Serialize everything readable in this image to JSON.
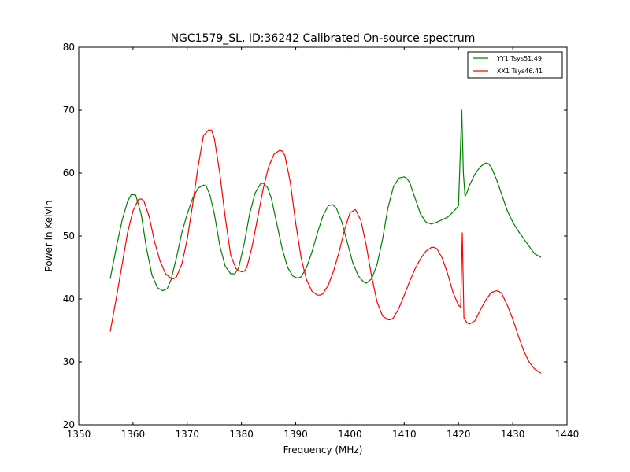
{
  "chart_data": {
    "type": "line",
    "title": "NGC1579_SL, ID:36242 Calibrated On-source spectrum",
    "xlabel": "Frequency (MHz)",
    "ylabel": "Power in Kelvin",
    "xlim": [
      1350,
      1440
    ],
    "ylim": [
      20,
      80
    ],
    "xticks": [
      "1350",
      "1360",
      "1370",
      "1380",
      "1390",
      "1400",
      "1410",
      "1420",
      "1430",
      "1440"
    ],
    "yticks": [
      "20",
      "30",
      "40",
      "50",
      "60",
      "70",
      "80"
    ],
    "grid": false,
    "legend_position": "top-right",
    "series": [
      {
        "name": "YY1 Tsys51.49",
        "color": "#008000",
        "x": [
          1355.8,
          1357.0,
          1358.0,
          1359.0,
          1359.7,
          1360.5,
          1361.5,
          1362.5,
          1363.5,
          1364.5,
          1365.5,
          1366.3,
          1367.0,
          1368.0,
          1369.0,
          1370.0,
          1371.0,
          1372.0,
          1373.0,
          1373.5,
          1374.2,
          1375.0,
          1376.0,
          1377.0,
          1378.0,
          1378.8,
          1379.5,
          1380.5,
          1381.5,
          1382.5,
          1383.5,
          1384.0,
          1384.8,
          1385.5,
          1386.5,
          1387.5,
          1388.5,
          1389.5,
          1390.3,
          1391.0,
          1392.0,
          1393.0,
          1394.0,
          1395.0,
          1396.0,
          1396.8,
          1397.5,
          1398.5,
          1399.5,
          1400.5,
          1401.5,
          1402.5,
          1403.0,
          1404.0,
          1405.0,
          1406.0,
          1407.0,
          1408.0,
          1409.0,
          1410.0,
          1410.5,
          1411.0,
          1412.0,
          1413.0,
          1414.0,
          1415.0,
          1416.0,
          1417.0,
          1418.0,
          1419.0,
          1420.0,
          1420.6,
          1420.9,
          1421.2,
          1421.5,
          1422.0,
          1423.0,
          1424.0,
          1425.0,
          1425.5,
          1426.0,
          1427.0,
          1428.0,
          1429.0,
          1430.0,
          1431.0,
          1432.0,
          1433.0,
          1434.0,
          1435.2
        ],
        "y": [
          43.2,
          48.5,
          52.5,
          55.5,
          56.6,
          56.5,
          53.5,
          48.0,
          43.8,
          41.8,
          41.3,
          41.6,
          43.0,
          46.5,
          50.5,
          53.5,
          56.0,
          57.6,
          58.1,
          57.9,
          56.5,
          53.5,
          48.5,
          45.2,
          44.0,
          44.0,
          45.0,
          48.8,
          53.5,
          56.8,
          58.3,
          58.4,
          57.7,
          56.0,
          52.0,
          48.0,
          45.0,
          43.6,
          43.3,
          43.5,
          45.0,
          47.5,
          50.5,
          53.2,
          54.8,
          55.0,
          54.4,
          52.2,
          49.0,
          45.8,
          43.7,
          42.7,
          42.5,
          43.2,
          45.5,
          49.5,
          54.5,
          57.8,
          59.2,
          59.4,
          59.1,
          58.5,
          56.0,
          53.5,
          52.2,
          51.9,
          52.2,
          52.6,
          53.0,
          53.8,
          54.8,
          70.0,
          60.0,
          56.3,
          56.8,
          58.0,
          59.8,
          61.0,
          61.6,
          61.5,
          61.0,
          59.0,
          56.5,
          54.0,
          52.2,
          50.8,
          49.6,
          48.4,
          47.2,
          46.6
        ]
      },
      {
        "name": "XX1 Tsys46.41",
        "color": "#ff0000",
        "x": [
          1355.8,
          1357.0,
          1358.0,
          1359.0,
          1360.0,
          1361.0,
          1361.5,
          1362.0,
          1363.0,
          1364.0,
          1365.0,
          1366.0,
          1367.0,
          1367.5,
          1368.0,
          1369.0,
          1370.0,
          1371.0,
          1372.0,
          1373.0,
          1374.0,
          1374.5,
          1375.0,
          1376.0,
          1377.0,
          1378.0,
          1379.0,
          1380.0,
          1380.5,
          1381.0,
          1382.0,
          1383.0,
          1384.0,
          1385.0,
          1386.0,
          1387.0,
          1387.5,
          1388.0,
          1389.0,
          1390.0,
          1391.0,
          1392.0,
          1393.0,
          1394.0,
          1394.5,
          1395.0,
          1396.0,
          1397.0,
          1398.0,
          1399.0,
          1400.0,
          1401.0,
          1402.0,
          1403.0,
          1404.0,
          1405.0,
          1406.0,
          1407.0,
          1407.5,
          1408.0,
          1409.0,
          1410.0,
          1411.0,
          1412.0,
          1413.0,
          1414.0,
          1415.0,
          1415.5,
          1416.0,
          1417.0,
          1418.0,
          1419.0,
          1420.0,
          1420.4,
          1420.7,
          1421.0,
          1421.5,
          1422.0,
          1423.0,
          1424.0,
          1425.0,
          1426.0,
          1427.0,
          1427.5,
          1428.0,
          1429.0,
          1430.0,
          1431.0,
          1432.0,
          1433.0,
          1434.0,
          1435.2
        ],
        "y": [
          34.8,
          40.5,
          45.5,
          50.5,
          54.0,
          55.8,
          55.9,
          55.6,
          53.0,
          49.0,
          46.0,
          44.0,
          43.3,
          43.2,
          43.5,
          45.5,
          49.5,
          55.0,
          61.0,
          66.0,
          66.9,
          66.8,
          65.5,
          60.0,
          53.0,
          47.0,
          44.8,
          44.3,
          44.4,
          45.0,
          48.5,
          53.0,
          57.5,
          61.0,
          63.0,
          63.6,
          63.5,
          62.8,
          58.5,
          52.0,
          46.5,
          43.0,
          41.2,
          40.6,
          40.6,
          40.8,
          42.2,
          44.5,
          47.5,
          51.0,
          53.7,
          54.2,
          52.5,
          48.5,
          43.5,
          39.5,
          37.3,
          36.7,
          36.7,
          37.0,
          38.5,
          40.6,
          42.8,
          44.8,
          46.4,
          47.6,
          48.2,
          48.2,
          48.0,
          46.5,
          44.0,
          41.0,
          39.0,
          38.7,
          50.5,
          37.0,
          36.3,
          36.0,
          36.5,
          38.2,
          39.8,
          41.0,
          41.3,
          41.2,
          40.8,
          39.0,
          36.8,
          34.2,
          31.8,
          30.0,
          28.9,
          28.2
        ]
      }
    ]
  }
}
